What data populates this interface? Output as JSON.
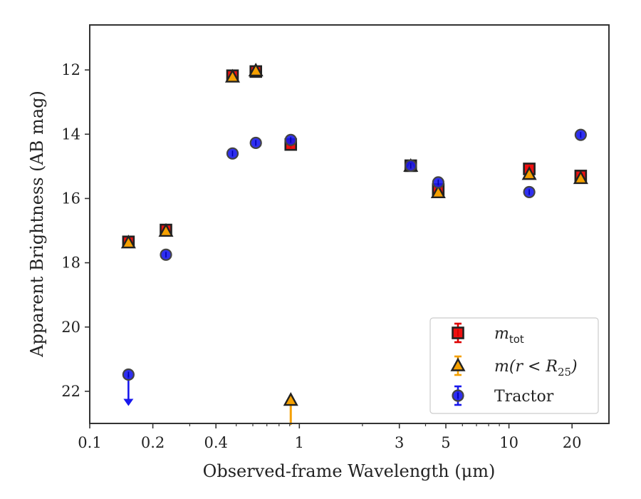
{
  "chart_data": {
    "type": "scatter",
    "xlabel": "Observed-frame Wavelength (μm)",
    "ylabel": "Apparent Brightness (AB mag)",
    "x_scale": "log",
    "xlim": [
      0.1,
      30
    ],
    "ylim": [
      23.0,
      10.6
    ],
    "y_inverted": true,
    "x_ticks": [
      {
        "value": 0.1,
        "label": "0.1"
      },
      {
        "value": 0.2,
        "label": "0.2"
      },
      {
        "value": 0.4,
        "label": "0.4"
      },
      {
        "value": 1,
        "label": "1"
      },
      {
        "value": 3,
        "label": "3"
      },
      {
        "value": 5,
        "label": "5"
      },
      {
        "value": 10,
        "label": "10"
      },
      {
        "value": 20,
        "label": "20"
      }
    ],
    "y_ticks": [
      {
        "value": 12,
        "label": "12"
      },
      {
        "value": 14,
        "label": "14"
      },
      {
        "value": 16,
        "label": "16"
      },
      {
        "value": 18,
        "label": "18"
      },
      {
        "value": 20,
        "label": "20"
      },
      {
        "value": 22,
        "label": "22"
      }
    ],
    "grid": false,
    "legend_position": "lower-right",
    "series": [
      {
        "key": "mtot",
        "legend_main": "m",
        "legend_sub": "tot",
        "legend_tail": "",
        "marker": "square",
        "color": "#ee1111",
        "edge": "#222222",
        "errcolor": "#dd0000",
        "x": [
          0.153,
          0.231,
          0.48,
          0.62,
          0.91,
          3.4,
          4.6,
          12.5,
          22.0
        ],
        "y": [
          17.35,
          16.98,
          12.18,
          12.05,
          14.32,
          14.98,
          15.72,
          15.08,
          15.3
        ]
      },
      {
        "key": "m25",
        "legend_main": "m(r",
        "legend_sub": "25",
        "legend_tail": ")",
        "marker": "triangle",
        "color": "#f5a000",
        "edge": "#222222",
        "errcolor": "#f5a000",
        "x": [
          0.153,
          0.231,
          0.48,
          0.62,
          0.91,
          3.4,
          4.6,
          12.5,
          22.0
        ],
        "y": [
          17.38,
          17.02,
          12.22,
          12.03,
          22.28,
          15.0,
          15.82,
          15.25,
          15.38
        ],
        "upper_limit_x": [
          0.91
        ]
      },
      {
        "key": "tractor",
        "legend_main": "Tractor",
        "legend_sub": "",
        "legend_tail": "",
        "marker": "circle",
        "color": "#1818ee",
        "edge": "#444444",
        "errcolor": "#1818ee",
        "x": [
          0.153,
          0.231,
          0.48,
          0.62,
          0.91,
          3.4,
          4.6,
          12.5,
          22.0
        ],
        "y": [
          21.48,
          17.75,
          14.6,
          14.27,
          14.18,
          14.98,
          15.5,
          15.8,
          14.02
        ],
        "upper_limit_x": [
          0.153
        ]
      }
    ]
  }
}
